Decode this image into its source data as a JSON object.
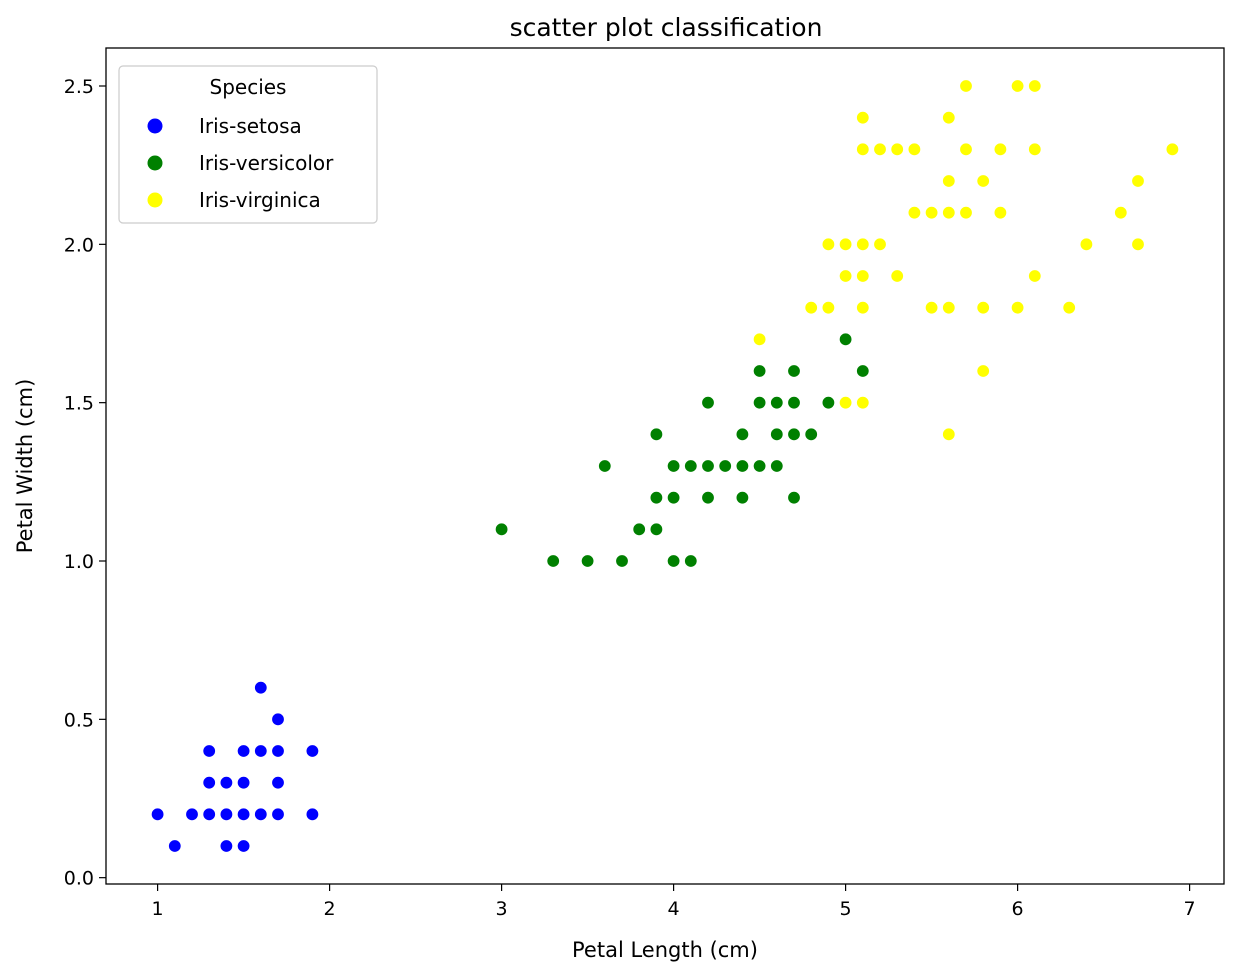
{
  "chart_data": {
    "type": "scatter",
    "title": "scatter plot classification",
    "xlabel": "Petal Length (cm)",
    "ylabel": "Petal Width (cm)",
    "xlim": [
      0.7,
      7.2
    ],
    "ylim": [
      -0.02,
      2.62
    ],
    "xticks": [
      1,
      2,
      3,
      4,
      5,
      6,
      7
    ],
    "yticks": [
      0.0,
      0.5,
      1.0,
      1.5,
      2.0,
      2.5
    ],
    "xtick_labels": [
      "1",
      "2",
      "3",
      "4",
      "5",
      "6",
      "7"
    ],
    "ytick_labels": [
      "0.0",
      "0.5",
      "1.0",
      "1.5",
      "2.0",
      "2.5"
    ],
    "grid": false,
    "legend": {
      "title": "Species",
      "position": "top-left"
    },
    "series": [
      {
        "name": "Iris-setosa",
        "color": "#0000ff",
        "points": [
          [
            1.4,
            0.2
          ],
          [
            1.3,
            0.2
          ],
          [
            1.5,
            0.2
          ],
          [
            1.7,
            0.4
          ],
          [
            1.4,
            0.3
          ],
          [
            1.5,
            0.1
          ],
          [
            1.1,
            0.1
          ],
          [
            1.2,
            0.2
          ],
          [
            1.5,
            0.4
          ],
          [
            1.3,
            0.4
          ],
          [
            1.7,
            0.3
          ],
          [
            1.0,
            0.2
          ],
          [
            1.7,
            0.5
          ],
          [
            1.9,
            0.2
          ],
          [
            1.6,
            0.2
          ],
          [
            1.6,
            0.4
          ],
          [
            1.5,
            0.3
          ],
          [
            1.4,
            0.1
          ],
          [
            1.6,
            0.6
          ],
          [
            1.9,
            0.4
          ],
          [
            1.3,
            0.3
          ],
          [
            1.7,
            0.2
          ]
        ]
      },
      {
        "name": "Iris-versicolor",
        "color": "#008000",
        "points": [
          [
            4.7,
            1.4
          ],
          [
            4.5,
            1.5
          ],
          [
            4.9,
            1.5
          ],
          [
            4.0,
            1.3
          ],
          [
            4.6,
            1.5
          ],
          [
            4.5,
            1.3
          ],
          [
            4.7,
            1.6
          ],
          [
            3.3,
            1.0
          ],
          [
            4.6,
            1.3
          ],
          [
            3.9,
            1.4
          ],
          [
            3.5,
            1.0
          ],
          [
            4.2,
            1.5
          ],
          [
            4.0,
            1.0
          ],
          [
            4.7,
            1.4
          ],
          [
            3.6,
            1.3
          ],
          [
            4.4,
            1.4
          ],
          [
            4.1,
            1.0
          ],
          [
            3.9,
            1.1
          ],
          [
            4.8,
            1.4
          ],
          [
            4.0,
            1.3
          ],
          [
            4.9,
            1.5
          ],
          [
            4.7,
            1.2
          ],
          [
            4.3,
            1.3
          ],
          [
            4.4,
            1.4
          ],
          [
            4.8,
            1.4
          ],
          [
            5.0,
            1.7
          ],
          [
            4.5,
            1.5
          ],
          [
            3.8,
            1.1
          ],
          [
            3.7,
            1.0
          ],
          [
            3.9,
            1.2
          ],
          [
            5.1,
            1.6
          ],
          [
            4.5,
            1.6
          ],
          [
            4.7,
            1.5
          ],
          [
            4.4,
            1.3
          ],
          [
            4.1,
            1.3
          ],
          [
            4.0,
            1.3
          ],
          [
            4.4,
            1.2
          ],
          [
            4.6,
            1.4
          ],
          [
            4.0,
            1.2
          ],
          [
            4.2,
            1.2
          ],
          [
            4.2,
            1.3
          ],
          [
            4.3,
            1.3
          ],
          [
            3.0,
            1.1
          ],
          [
            4.1,
            1.3
          ],
          [
            4.5,
            1.5
          ],
          [
            4.6,
            1.4
          ],
          [
            4.4,
            1.4
          ]
        ]
      },
      {
        "name": "Iris-virginica",
        "color": "#ffff00",
        "points": [
          [
            6.0,
            2.5
          ],
          [
            5.1,
            1.9
          ],
          [
            5.9,
            2.1
          ],
          [
            5.6,
            1.8
          ],
          [
            5.8,
            2.2
          ],
          [
            6.6,
            2.1
          ],
          [
            4.5,
            1.7
          ],
          [
            6.3,
            1.8
          ],
          [
            5.8,
            1.8
          ],
          [
            6.1,
            2.5
          ],
          [
            5.1,
            2.0
          ],
          [
            5.3,
            1.9
          ],
          [
            5.5,
            2.1
          ],
          [
            5.0,
            2.0
          ],
          [
            5.1,
            2.4
          ],
          [
            5.3,
            2.3
          ],
          [
            5.5,
            1.8
          ],
          [
            6.7,
            2.2
          ],
          [
            6.9,
            2.3
          ],
          [
            5.0,
            1.5
          ],
          [
            5.7,
            2.3
          ],
          [
            4.9,
            2.0
          ],
          [
            6.7,
            2.0
          ],
          [
            4.9,
            1.8
          ],
          [
            5.7,
            2.1
          ],
          [
            6.0,
            1.8
          ],
          [
            4.8,
            1.8
          ],
          [
            5.8,
            1.6
          ],
          [
            6.1,
            1.9
          ],
          [
            6.4,
            2.0
          ],
          [
            5.6,
            2.2
          ],
          [
            5.1,
            1.5
          ],
          [
            5.6,
            1.4
          ],
          [
            6.1,
            2.3
          ],
          [
            5.6,
            2.4
          ],
          [
            5.5,
            1.8
          ],
          [
            5.4,
            2.1
          ],
          [
            5.6,
            2.1
          ],
          [
            5.1,
            2.3
          ],
          [
            5.9,
            2.3
          ],
          [
            5.7,
            2.5
          ],
          [
            5.2,
            2.3
          ],
          [
            5.0,
            1.9
          ],
          [
            5.2,
            2.0
          ],
          [
            5.4,
            2.3
          ],
          [
            5.1,
            1.8
          ]
        ]
      }
    ]
  }
}
